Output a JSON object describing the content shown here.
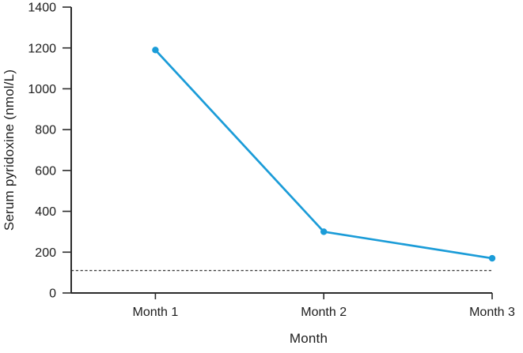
{
  "chart_data": {
    "type": "line",
    "title": "",
    "categories": [
      "Month 1",
      "Month 2",
      "Month 3"
    ],
    "series": [
      {
        "name": "Serum pyridoxine",
        "values": [
          1190,
          300,
          170
        ],
        "color": "#1b9cd8",
        "marker": "circle"
      }
    ],
    "reference_line": {
      "value": 110,
      "style": "dashed",
      "color": "#404040"
    },
    "xlabel": "Month",
    "ylabel": "Serum pyridoxine (nmol/L)",
    "ylim": [
      0,
      1400
    ],
    "yticks": [
      0,
      200,
      400,
      600,
      800,
      1000,
      1200,
      1400
    ],
    "grid": false,
    "legend": "none"
  },
  "colors": {
    "line": "#1b9cd8",
    "axis": "#2b2b2b",
    "text": "#1d1d1d",
    "reference": "#404040",
    "background": "#ffffff"
  }
}
